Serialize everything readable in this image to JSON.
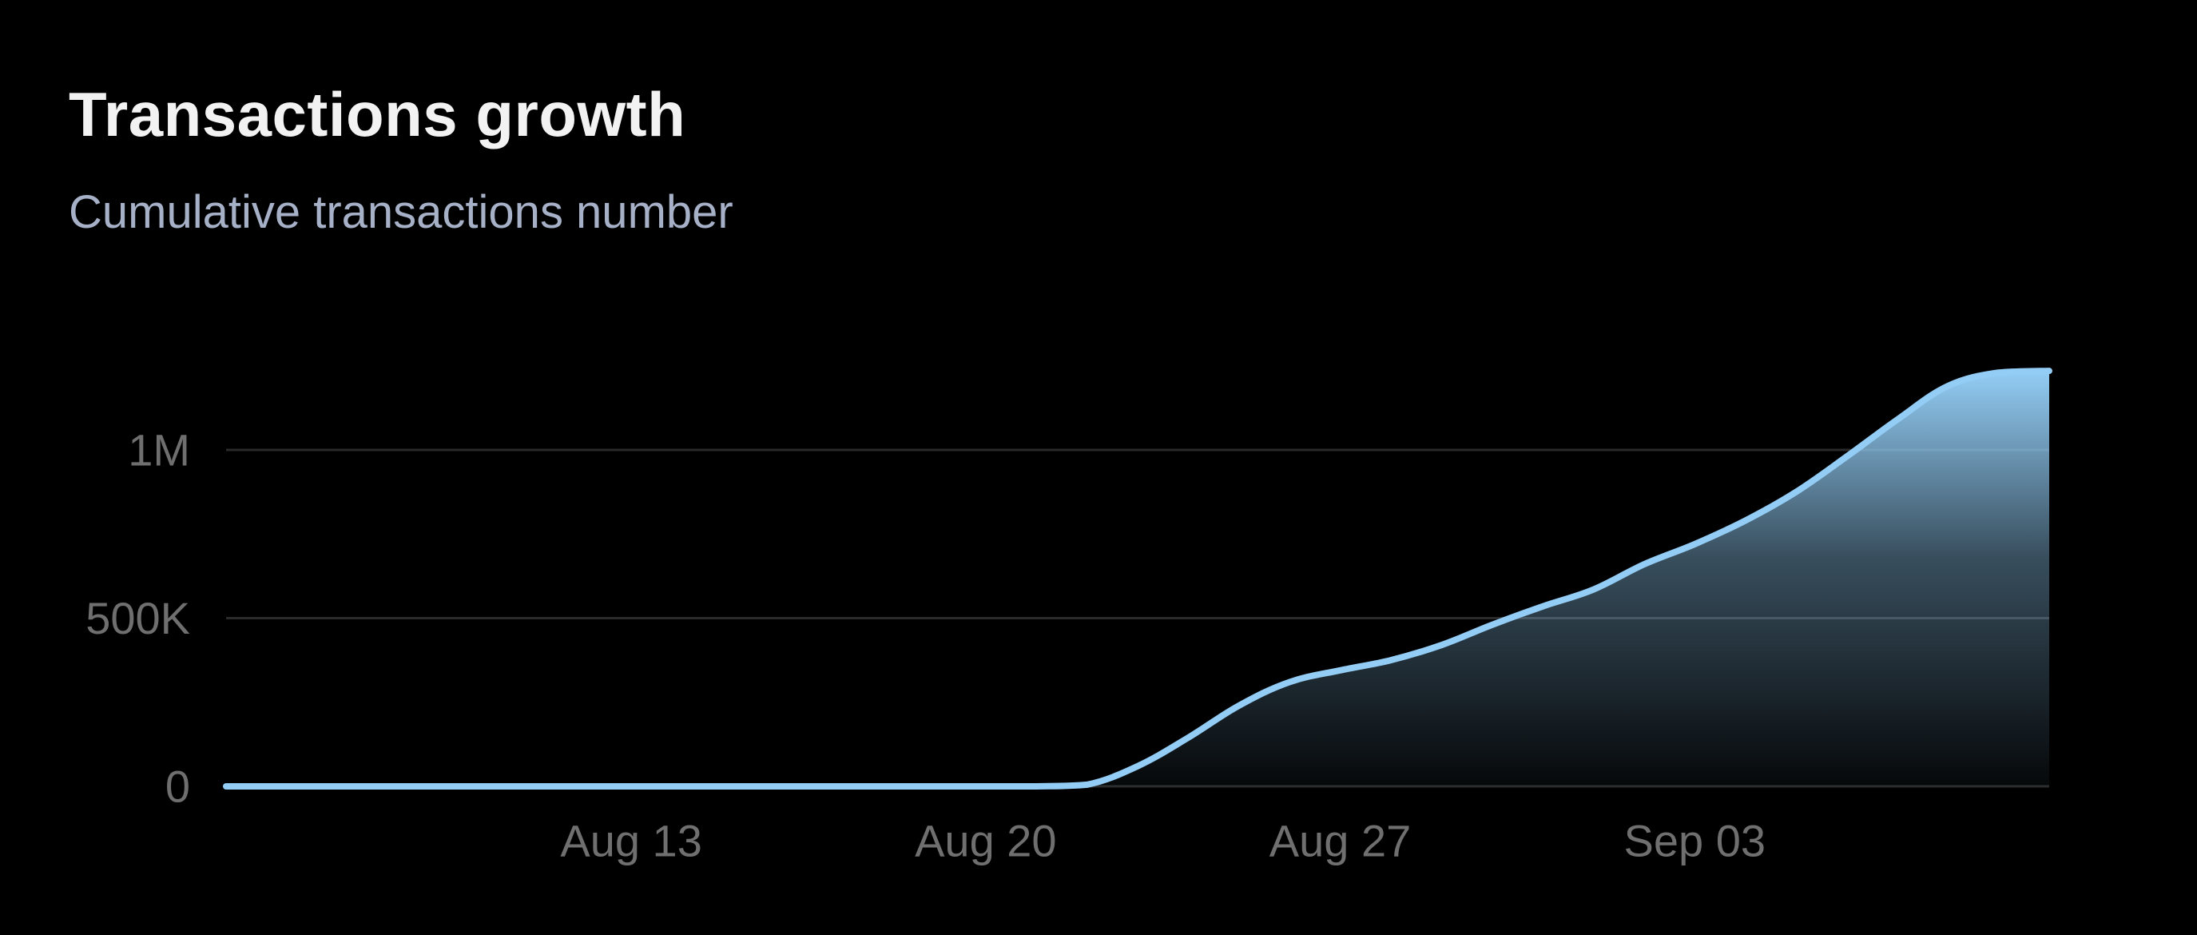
{
  "header": {
    "title": "Transactions growth",
    "subtitle": "Cumulative transactions number"
  },
  "colors": {
    "background": "#000000",
    "line": "#93cdf5",
    "area_top": "#93cdf5",
    "grid": "#2a2a2a",
    "tick_text": "#6f6f6f"
  },
  "chart_data": {
    "type": "area",
    "title": "Transactions growth",
    "subtitle": "Cumulative transactions number",
    "xlabel": "",
    "ylabel": "",
    "grid": true,
    "legend": "none",
    "x_range": [
      "2024-08-05",
      "2024-09-08"
    ],
    "ylim": [
      0,
      1250000
    ],
    "y_ticks": [
      {
        "value": 0,
        "label": "0"
      },
      {
        "value": 500000,
        "label": "500K"
      },
      {
        "value": 1000000,
        "label": "1M"
      }
    ],
    "x_ticks": [
      {
        "date": "2024-08-13",
        "label": "Aug 13"
      },
      {
        "date": "2024-08-20",
        "label": "Aug 20"
      },
      {
        "date": "2024-08-27",
        "label": "Aug 27"
      },
      {
        "date": "2024-09-03",
        "label": "Sep 03"
      }
    ],
    "series": [
      {
        "points": [
          {
            "x": "2024-08-05",
            "y": 0
          },
          {
            "x": "2024-08-10",
            "y": 0
          },
          {
            "x": "2024-08-15",
            "y": 0
          },
          {
            "x": "2024-08-20",
            "y": 0
          },
          {
            "x": "2024-08-21",
            "y": 0
          },
          {
            "x": "2024-08-22",
            "y": 5000
          },
          {
            "x": "2024-08-23",
            "y": 60000
          },
          {
            "x": "2024-08-24",
            "y": 145000
          },
          {
            "x": "2024-08-25",
            "y": 240000
          },
          {
            "x": "2024-08-26",
            "y": 310000
          },
          {
            "x": "2024-08-27",
            "y": 345000
          },
          {
            "x": "2024-08-28",
            "y": 375000
          },
          {
            "x": "2024-08-29",
            "y": 420000
          },
          {
            "x": "2024-08-30",
            "y": 480000
          },
          {
            "x": "2024-08-31",
            "y": 535000
          },
          {
            "x": "2024-09-01",
            "y": 585000
          },
          {
            "x": "2024-09-02",
            "y": 660000
          },
          {
            "x": "2024-09-03",
            "y": 720000
          },
          {
            "x": "2024-09-04",
            "y": 790000
          },
          {
            "x": "2024-09-05",
            "y": 875000
          },
          {
            "x": "2024-09-06",
            "y": 980000
          },
          {
            "x": "2024-09-07",
            "y": 1090000
          },
          {
            "x": "2024-09-08",
            "y": 1190000
          },
          {
            "x": "2024-09-09",
            "y": 1230000
          },
          {
            "x": "2024-09-10",
            "y": 1235000
          }
        ]
      }
    ]
  }
}
